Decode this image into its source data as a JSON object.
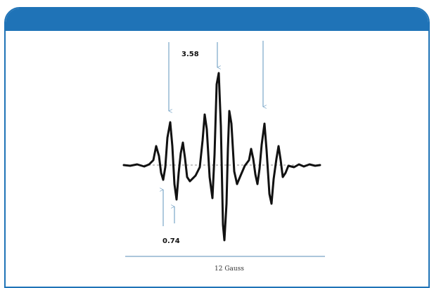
{
  "figure": {
    "splitting_top": "3.58",
    "splitting_bottom": "0.74",
    "scale_label": "12 Gauss"
  },
  "colors": {
    "header": "#1f73b7",
    "arrow": "#7aa6c8",
    "trace": "#111111",
    "scale_bar": "#8fb4cf"
  }
}
